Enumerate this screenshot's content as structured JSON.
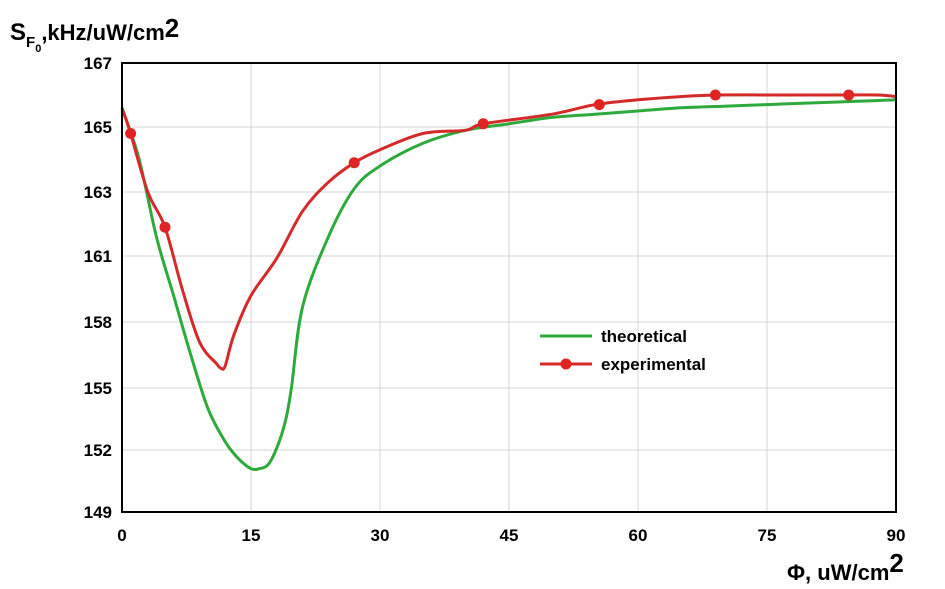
{
  "chart_data": {
    "type": "line",
    "ylabel": {
      "main": "S",
      "sub": "F",
      "subsub": "0",
      "rest": ",kHz/uW/cm",
      "sup": "2"
    },
    "xlabel": {
      "main": "Φ,  uW/cm",
      "sup": "2"
    },
    "xlim": [
      0,
      90
    ],
    "x_ticks": [
      0,
      15,
      30,
      45,
      60,
      75,
      90
    ],
    "y_ticks": [
      149,
      152,
      155,
      158,
      161,
      163,
      165,
      167
    ],
    "grid": true,
    "legend_position": "center-right",
    "series": [
      {
        "name": "theoretical",
        "color": "#2eaa3c",
        "marker": "none",
        "x": [
          0,
          2,
          4,
          6,
          8,
          10,
          12,
          13.5,
          15,
          16,
          17,
          18,
          19,
          19.7,
          21,
          24,
          27,
          30,
          35,
          40,
          45,
          50,
          55,
          60,
          65,
          70,
          75,
          80,
          85,
          90
        ],
        "y": [
          165.6,
          164,
          161.6,
          159.2,
          156.5,
          154.0,
          152.4,
          151.6,
          151.1,
          151.1,
          151.3,
          152.1,
          153.4,
          155.0,
          158.7,
          161.6,
          163.1,
          163.8,
          164.5,
          164.9,
          165.1,
          165.3,
          165.4,
          165.5,
          165.6,
          165.65,
          165.7,
          165.75,
          165.8,
          165.85
        ]
      },
      {
        "name": "experimental",
        "color": "#d42a2a",
        "marker": "circle",
        "x": [
          0,
          1,
          3,
          5,
          7,
          9,
          11,
          11.5,
          12,
          13,
          15,
          18,
          21,
          24,
          27,
          30,
          35,
          40,
          42,
          50,
          55,
          60,
          65,
          69,
          75,
          80,
          84.5,
          88,
          90
        ],
        "y": [
          165.6,
          164.8,
          163.0,
          161.9,
          159.5,
          157.1,
          156.1,
          155.9,
          156.0,
          157.4,
          159.2,
          160.9,
          162.4,
          163.3,
          163.9,
          164.3,
          164.8,
          164.9,
          165.1,
          165.4,
          165.7,
          165.85,
          165.95,
          166.0,
          166.0,
          166.0,
          166.0,
          166.0,
          165.95
        ],
        "marker_points": [
          [
            1,
            164.8
          ],
          [
            5,
            161.9
          ],
          [
            27,
            163.9
          ],
          [
            42,
            165.1
          ],
          [
            55.5,
            165.7
          ],
          [
            69,
            166.0
          ],
          [
            84.5,
            166.0
          ]
        ]
      }
    ]
  }
}
